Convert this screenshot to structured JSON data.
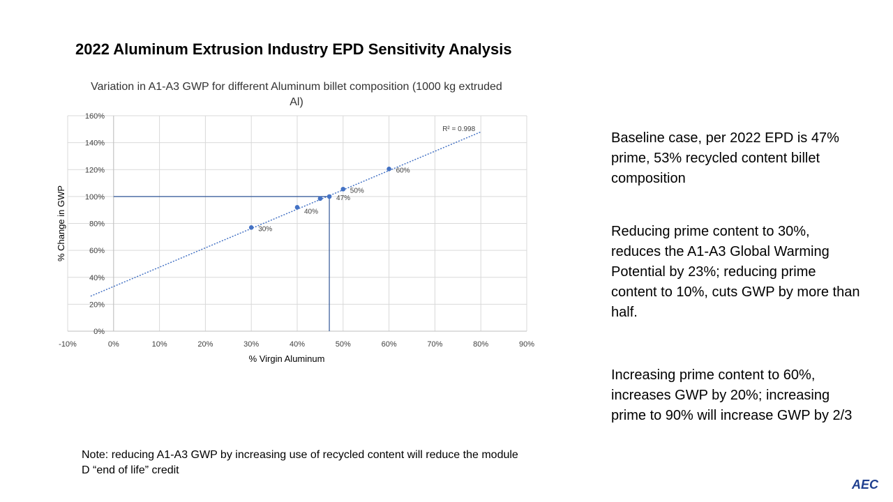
{
  "slide": {
    "title": "2022 Aluminum Extrusion Industry EPD Sensitivity Analysis",
    "note": "Note:  reducing A1-A3 GWP by increasing use of recycled content will reduce the module D “end of life” credit",
    "bullets": [
      "Baseline case, per 2022 EPD is 47% prime,  53% recycled content billet composition",
      "Reducing prime content to 30%, reduces the A1-A3 Global Warming Potential by 23%; reducing prime content to 10%, cuts GWP by more than half.",
      "Increasing prime content to 60%, increases GWP by 20%;  increasing prime to 90% will increase GWP by 2/3"
    ],
    "logo_text": "AEC",
    "colors": {
      "series": "#4472c4",
      "grid": "#d9d9d9",
      "axis": "#bfbfbf"
    }
  },
  "chart_data": {
    "type": "scatter",
    "title": "Variation in A1-A3 GWP for different Aluminum billet composition (1000 kg extruded Al)",
    "xlabel": "% Virgin Aluminum",
    "ylabel": "% Change in GWP",
    "xlim": [
      -10,
      90
    ],
    "ylim": [
      0,
      160
    ],
    "xticks": [
      "-10%",
      "0%",
      "10%",
      "20%",
      "30%",
      "40%",
      "50%",
      "60%",
      "70%",
      "80%",
      "90%"
    ],
    "yticks": [
      "0%",
      "20%",
      "40%",
      "60%",
      "80%",
      "100%",
      "120%",
      "140%",
      "160%"
    ],
    "grid": true,
    "points": [
      {
        "x": 30,
        "y": 77,
        "label": "30%"
      },
      {
        "x": 40,
        "y": 92,
        "label": "40%"
      },
      {
        "x": 45,
        "y": 98.5,
        "label": ""
      },
      {
        "x": 47,
        "y": 100,
        "label": "47%"
      },
      {
        "x": 50,
        "y": 105.5,
        "label": "50%"
      },
      {
        "x": 60,
        "y": 120.5,
        "label": "60%"
      }
    ],
    "trendline": {
      "x_start": -5,
      "x_end": 80,
      "y_start": 26,
      "y_end": 148,
      "r_squared": "R² = 0.998"
    },
    "reference_lines": {
      "baseline_x": 47,
      "baseline_y": 100
    }
  }
}
